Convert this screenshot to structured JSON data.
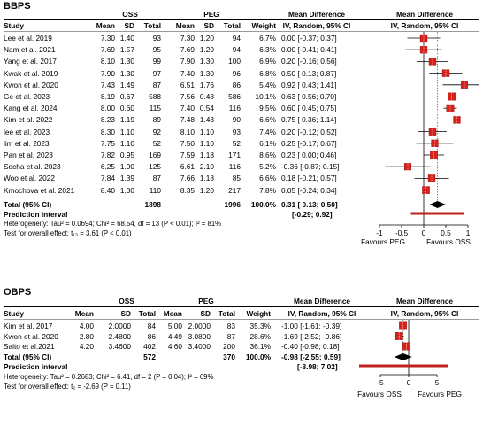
{
  "bbps": {
    "title": "BBPS",
    "group1": "OSS",
    "group2": "PEG",
    "cols": {
      "study": "Study",
      "mean": "Mean",
      "sd": "SD",
      "total": "Total",
      "weight": "Weight",
      "md1": "Mean Difference",
      "md2": "IV, Random, 95% CI"
    },
    "rows": [
      {
        "study": "Lee et al. 2019",
        "m1": "7.30",
        "sd1": "1.40",
        "n1": "93",
        "m2": "7.30",
        "sd2": "1.20",
        "n2": "94",
        "w": "6.7%",
        "ci": "0.00 [-0.37; 0.37]"
      },
      {
        "study": "Nam et al. 2021",
        "m1": "7.69",
        "sd1": "1.57",
        "n1": "95",
        "m2": "7.69",
        "sd2": "1.29",
        "n2": "94",
        "w": "6.3%",
        "ci": "0.00 [-0.41; 0.41]"
      },
      {
        "study": "Yang et al. 2017",
        "m1": "8.10",
        "sd1": "1.30",
        "n1": "99",
        "m2": "7.90",
        "sd2": "1.30",
        "n2": "100",
        "w": "6.9%",
        "ci": "0.20 [-0.16; 0.56]"
      },
      {
        "study": "Kwak et al. 2019",
        "m1": "7.90",
        "sd1": "1.30",
        "n1": "97",
        "m2": "7.40",
        "sd2": "1.30",
        "n2": "96",
        "w": "6.8%",
        "ci": "0.50 [ 0.13; 0.87]"
      },
      {
        "study": "Kwon et al. 2020",
        "m1": "7.43",
        "sd1": "1.49",
        "n1": "87",
        "m2": "6.51",
        "sd2": "1.76",
        "n2": "86",
        "w": "5.4%",
        "ci": "0.92 [ 0.43; 1.41]"
      },
      {
        "study": "Ge et al. 2023",
        "m1": "8.19",
        "sd1": "0.67",
        "n1": "588",
        "m2": "7.56",
        "sd2": "0.48",
        "n2": "586",
        "w": "10.1%",
        "ci": "0.63 [ 0.56; 0.70]"
      },
      {
        "study": "Kang et al. 2024",
        "m1": "8.00",
        "sd1": "0.60",
        "n1": "115",
        "m2": "7.40",
        "sd2": "0.54",
        "n2": "116",
        "w": "9.5%",
        "ci": "0.60 [ 0.45; 0.75]"
      },
      {
        "study": "Kim et al. 2022",
        "m1": "8.23",
        "sd1": "1.19",
        "n1": "89",
        "m2": "7.48",
        "sd2": "1.43",
        "n2": "90",
        "w": "6.6%",
        "ci": "0.75 [ 0.36; 1.14]"
      },
      {
        "study": "lee et al. 2023",
        "m1": "8.30",
        "sd1": "1.10",
        "n1": "92",
        "m2": "8.10",
        "sd2": "1.10",
        "n2": "93",
        "w": "7.4%",
        "ci": "0.20 [-0.12; 0.52]"
      },
      {
        "study": "lim et al. 2023",
        "m1": "7.75",
        "sd1": "1.10",
        "n1": "52",
        "m2": "7.50",
        "sd2": "1.10",
        "n2": "52",
        "w": "6.1%",
        "ci": "0.25 [-0.17; 0.67]"
      },
      {
        "study": "Pan et al. 2023",
        "m1": "7.82",
        "sd1": "0.95",
        "n1": "169",
        "m2": "7.59",
        "sd2": "1.18",
        "n2": "171",
        "w": "8.6%",
        "ci": "0.23 [ 0.00; 0.46]"
      },
      {
        "study": "Socha et al. 2023",
        "m1": "6.25",
        "sd1": "1.90",
        "n1": "125",
        "m2": "6.61",
        "sd2": "2.10",
        "n2": "116",
        "w": "5.2%",
        "ci": "-0.36 [-0.87; 0.15]"
      },
      {
        "study": "Woo et al. 2022",
        "m1": "7.84",
        "sd1": "1.39",
        "n1": "87",
        "m2": "7.66",
        "sd2": "1.18",
        "n2": "85",
        "w": "6.6%",
        "ci": "0.18 [-0.21; 0.57]"
      },
      {
        "study": "Kmochova et al. 2021",
        "m1": "8.40",
        "sd1": "1.30",
        "n1": "110",
        "m2": "8.35",
        "sd2": "1.20",
        "n2": "217",
        "w": "7.8%",
        "ci": "0.05 [-0.24; 0.34]"
      }
    ],
    "total": {
      "label": "Total (95% CI)",
      "n1": "1898",
      "n2": "1996",
      "w": "100.0%",
      "ci": "0.31 [ 0.13; 0.50]"
    },
    "prediction": {
      "label": "Prediction interval",
      "ci": "[-0.29; 0.92]"
    },
    "heterogeneity": "Heterogeneity: Tau² = 0.0694; Chi² = 68.54, df = 13 (P < 0.01); I² = 81%",
    "overall": "Test for overall effect: t₁₃ = 3.61 (P < 0.01)",
    "favours_left": "Favours PEG",
    "favours_right": "Favours OSS"
  },
  "obps": {
    "title": "OBPS",
    "group1": "OSS",
    "group2": "PEG",
    "cols": {
      "study": "Study",
      "mean": "Mean",
      "sd": "SD",
      "total": "Total",
      "weight": "Weight",
      "md1": "Mean Difference",
      "md2": "IV, Random, 95% CI"
    },
    "rows": [
      {
        "study": "Kim et al. 2017",
        "m1": "4.00",
        "sd1": "2.0000",
        "n1": "84",
        "m2": "5.00",
        "sd2": "2.0000",
        "n2": "83",
        "w": "35.3%",
        "ci": "-1.00 [-1.61; -0.39]"
      },
      {
        "study": "Kwon et al. 2020",
        "m1": "2.80",
        "sd1": "2.4800",
        "n1": "86",
        "m2": "4.49",
        "sd2": "3.0800",
        "n2": "87",
        "w": "28.6%",
        "ci": "-1.69 [-2.52; -0.86]"
      },
      {
        "study": "Saito et al.2021",
        "m1": "4.20",
        "sd1": "3.4600",
        "n1": "402",
        "m2": "4.60",
        "sd2": "3.4000",
        "n2": "200",
        "w": "36.1%",
        "ci": "-0.40 [-0.98; 0.18]"
      }
    ],
    "total": {
      "label": "Total (95% CI)",
      "n1": "572",
      "n2": "370",
      "w": "100.0%",
      "ci": "-0.98 [-2.55; 0.59]"
    },
    "prediction": {
      "label": "Prediction interval",
      "ci": "[-8.98; 7.02]"
    },
    "heterogeneity": "Heterogeneity: Tau² = 0.2683; Chi² = 6.41, df = 2 (P = 0.04); I² = 69%",
    "overall": "Test for overall effect: t₂ = -2.69 (P = 0.11)",
    "favours_left": "Favours OSS",
    "favours_right": "Favours PEG"
  },
  "chart_data": [
    {
      "type": "forest",
      "title": "BBPS",
      "xlim": [
        -1,
        1
      ],
      "ticks": [
        -1,
        -0.5,
        0,
        0.5,
        1
      ],
      "tick_labels": [
        "-1",
        "-0.5",
        "0",
        "0.5",
        "1"
      ],
      "studies": [
        {
          "name": "Lee et al. 2019",
          "est": 0.0,
          "lo": -0.37,
          "hi": 0.37,
          "weight": 6.7
        },
        {
          "name": "Nam et al. 2021",
          "est": 0.0,
          "lo": -0.41,
          "hi": 0.41,
          "weight": 6.3
        },
        {
          "name": "Yang et al. 2017",
          "est": 0.2,
          "lo": -0.16,
          "hi": 0.56,
          "weight": 6.9
        },
        {
          "name": "Kwak et al. 2019",
          "est": 0.5,
          "lo": 0.13,
          "hi": 0.87,
          "weight": 6.8
        },
        {
          "name": "Kwon et al. 2020",
          "est": 0.92,
          "lo": 0.43,
          "hi": 1.41,
          "weight": 5.4
        },
        {
          "name": "Ge et al. 2023",
          "est": 0.63,
          "lo": 0.56,
          "hi": 0.7,
          "weight": 10.1
        },
        {
          "name": "Kang et al. 2024",
          "est": 0.6,
          "lo": 0.45,
          "hi": 0.75,
          "weight": 9.5
        },
        {
          "name": "Kim et al. 2022",
          "est": 0.75,
          "lo": 0.36,
          "hi": 1.14,
          "weight": 6.6
        },
        {
          "name": "lee et al. 2023",
          "est": 0.2,
          "lo": -0.12,
          "hi": 0.52,
          "weight": 7.4
        },
        {
          "name": "lim et al. 2023",
          "est": 0.25,
          "lo": -0.17,
          "hi": 0.67,
          "weight": 6.1
        },
        {
          "name": "Pan et al. 2023",
          "est": 0.23,
          "lo": 0.0,
          "hi": 0.46,
          "weight": 8.6
        },
        {
          "name": "Socha et al. 2023",
          "est": -0.36,
          "lo": -0.87,
          "hi": 0.15,
          "weight": 5.2
        },
        {
          "name": "Woo et al. 2022",
          "est": 0.18,
          "lo": -0.21,
          "hi": 0.57,
          "weight": 6.6
        },
        {
          "name": "Kmochova et al. 2021",
          "est": 0.05,
          "lo": -0.24,
          "hi": 0.34,
          "weight": 7.8
        }
      ],
      "pooled": {
        "est": 0.31,
        "lo": 0.13,
        "hi": 0.5
      },
      "prediction": {
        "lo": -0.29,
        "hi": 0.92
      },
      "xlabel_left": "Favours PEG",
      "xlabel_right": "Favours OSS",
      "colors": {
        "square": "#d9201b",
        "pred": "#c0201c"
      }
    },
    {
      "type": "forest",
      "title": "OBPS",
      "xlim": [
        -5,
        5
      ],
      "ticks": [
        -5,
        0,
        5
      ],
      "tick_labels": [
        "-5",
        "0",
        "5"
      ],
      "studies": [
        {
          "name": "Kim et al. 2017",
          "est": -1.0,
          "lo": -1.61,
          "hi": -0.39,
          "weight": 35.3
        },
        {
          "name": "Kwon et al. 2020",
          "est": -1.69,
          "lo": -2.52,
          "hi": -0.86,
          "weight": 28.6
        },
        {
          "name": "Saito et al.2021",
          "est": -0.4,
          "lo": -0.98,
          "hi": 0.18,
          "weight": 36.1
        }
      ],
      "pooled": {
        "est": -0.98,
        "lo": -2.55,
        "hi": 0.59
      },
      "prediction": {
        "lo": -8.98,
        "hi": 7.02
      },
      "xlabel_left": "Favours OSS",
      "xlabel_right": "Favours PEG",
      "colors": {
        "square": "#d9201b",
        "pred": "#c0201c"
      }
    }
  ]
}
